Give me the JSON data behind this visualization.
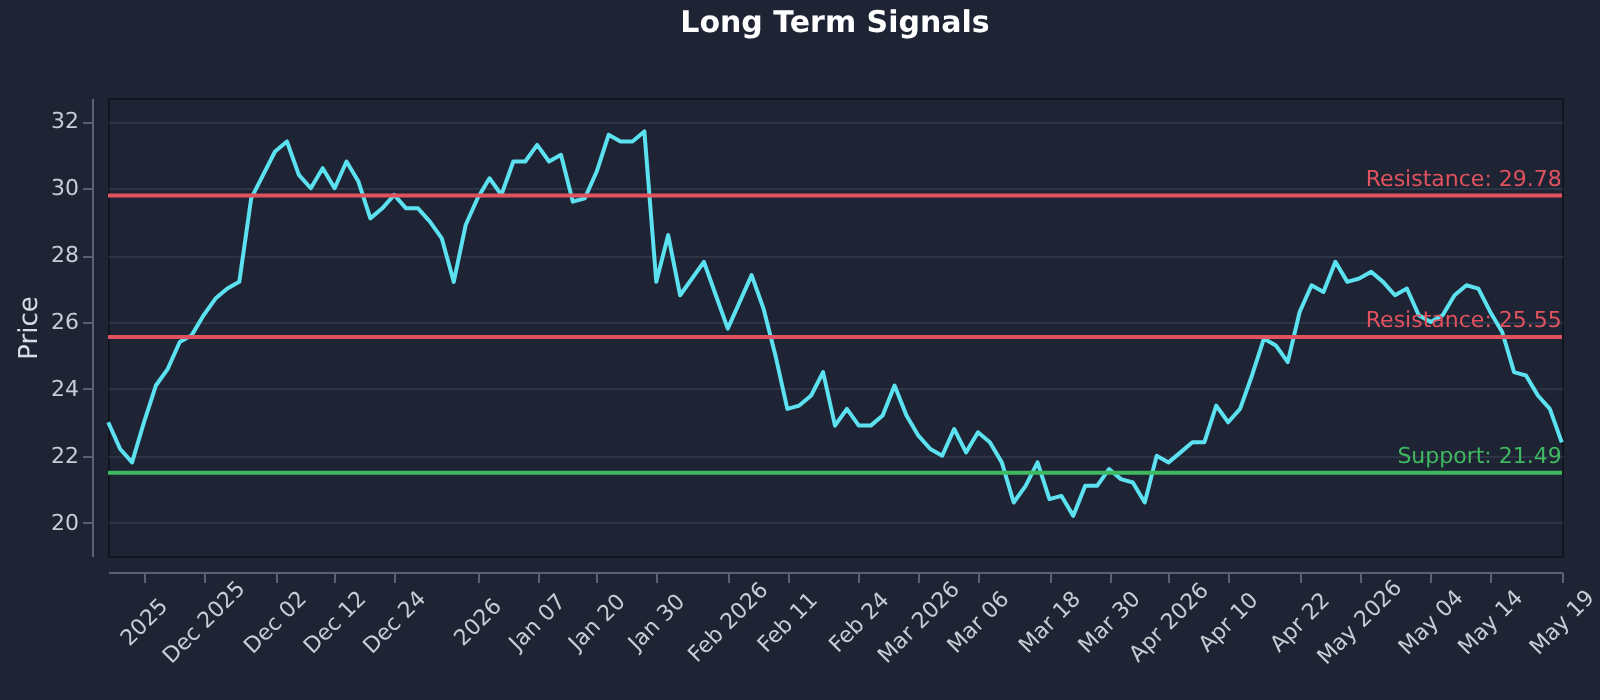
{
  "chart_data": {
    "type": "line",
    "title": "Long Term Signals",
    "ylabel": "Price",
    "categories": [
      null,
      null,
      null,
      "2025",
      null,
      null,
      null,
      null,
      "Dec 2025",
      null,
      null,
      null,
      null,
      null,
      "Dec 02",
      null,
      null,
      null,
      null,
      "Dec 12",
      null,
      null,
      null,
      null,
      "Dec 24",
      null,
      null,
      null,
      null,
      null,
      null,
      "2026",
      null,
      null,
      null,
      null,
      "Jan 07",
      null,
      null,
      null,
      null,
      "Jan 20",
      null,
      null,
      null,
      null,
      "Jan 30",
      null,
      null,
      null,
      null,
      null,
      "Feb 2026",
      null,
      null,
      null,
      null,
      "Feb 11",
      null,
      null,
      null,
      null,
      null,
      "Feb 24",
      null,
      null,
      null,
      null,
      "Mar 2026",
      null,
      null,
      null,
      null,
      "Mar 06",
      null,
      null,
      null,
      null,
      null,
      "Mar 18",
      null,
      null,
      null,
      null,
      "Mar 30",
      null,
      null,
      null,
      null,
      "Apr 2026",
      null,
      null,
      null,
      null,
      "Apr 10",
      null,
      null,
      null,
      null,
      null,
      "Apr 22",
      null,
      null,
      null,
      null,
      "May 2026",
      null,
      null,
      null,
      null,
      null,
      "May 04",
      null,
      null,
      null,
      null,
      "May 14",
      null,
      null,
      null,
      null,
      null,
      "May 19"
    ],
    "series": [
      {
        "color": "#5ce1f0",
        "values": [
          23.0,
          22.2,
          21.8,
          23.0,
          24.1,
          24.6,
          25.4,
          25.6,
          26.2,
          26.7,
          27.0,
          27.2,
          29.7,
          30.4,
          31.1,
          31.4,
          30.4,
          30.0,
          30.6,
          30.0,
          30.8,
          30.2,
          29.1,
          29.4,
          29.8,
          29.4,
          29.4,
          29.0,
          28.5,
          27.2,
          28.9,
          29.7,
          30.3,
          29.8,
          30.8,
          30.8,
          31.3,
          30.8,
          31.0,
          29.6,
          29.7,
          30.5,
          31.6,
          31.4,
          31.4,
          31.7,
          27.2,
          28.6,
          26.8,
          27.3,
          27.8,
          26.8,
          25.8,
          26.6,
          27.4,
          26.4,
          25.0,
          23.4,
          23.5,
          23.8,
          24.5,
          22.9,
          23.4,
          22.9,
          22.9,
          23.2,
          24.1,
          23.2,
          22.6,
          22.2,
          22.0,
          22.8,
          22.1,
          22.7,
          22.4,
          21.8,
          20.6,
          21.1,
          21.8,
          20.7,
          20.8,
          20.2,
          21.1,
          21.1,
          21.6,
          21.3,
          21.2,
          20.6,
          22.0,
          21.8,
          22.1,
          22.4,
          22.4,
          23.5,
          23.0,
          23.4,
          24.4,
          25.5,
          25.3,
          24.8,
          26.3,
          27.1,
          26.9,
          27.8,
          27.2,
          27.3,
          27.5,
          27.2,
          26.8,
          27.0,
          26.2,
          26.0,
          26.2,
          26.8,
          27.1,
          27.0,
          26.3,
          25.7,
          24.5,
          24.4,
          23.8,
          23.4,
          22.4
        ]
      }
    ],
    "ylim": [
      19,
      32.7
    ],
    "yticks": [
      20,
      22,
      24,
      26,
      28,
      30,
      32
    ],
    "grid": "y",
    "line_style": "solid",
    "ref_lines": [
      {
        "axis": "y",
        "value": 29.78,
        "label": "Resistance: 29.78",
        "color": "#e0525e"
      },
      {
        "axis": "y",
        "value": 25.55,
        "label": "Resistance: 25.55",
        "color": "#e0525e"
      },
      {
        "axis": "y",
        "value": 21.49,
        "label": "Support: 21.49",
        "color": "#3fb960"
      }
    ]
  }
}
